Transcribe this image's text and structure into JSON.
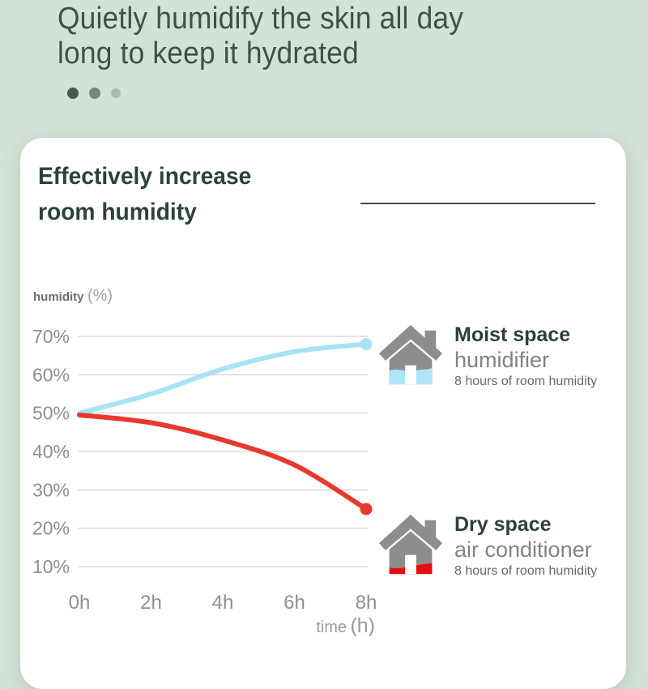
{
  "colors": {
    "page_bg": "#d4e1d6",
    "header_text": "#3d5245",
    "card_bg": "#ffffff",
    "card_title": "#2c4435",
    "rule": "#3e4e44",
    "grid": "#cacaca",
    "tick_text": "#8f8f8f",
    "humid_line": "#a7e3f5",
    "dry_line": "#e9382e",
    "house_gray": "#8d8d8d",
    "house_water_blue": "#aee6f8",
    "house_dry_red": "#e60f0f",
    "legend_title": "#2b4233",
    "legend_subtitle": "#828282",
    "legend_caption": "#686868"
  },
  "header": {
    "title_line1": "Quietly humidify the skin all day",
    "title_line2": "long to keep it hydrated"
  },
  "carousel": {
    "dots": [
      {
        "name": "carousel-dot-1",
        "color": "#45584b",
        "active": true
      },
      {
        "name": "carousel-dot-2",
        "color": "#73877a",
        "active": false
      },
      {
        "name": "carousel-dot-3",
        "color": "#a8bbad",
        "active": false
      }
    ]
  },
  "card": {
    "title_line1": "Effectively increase",
    "title_line2": "room humidity"
  },
  "chart_data": {
    "type": "line",
    "title": "Effectively increase room humidity",
    "xlabel": "time (h)",
    "ylabel": "humidity (%)",
    "xlabel_parts": {
      "word": "time",
      "unit": "(h)"
    },
    "ylabel_parts": {
      "word": "humidity",
      "unit": "(%)"
    },
    "x_ticks": [
      "0h",
      "2h",
      "4h",
      "6h",
      "8h"
    ],
    "x_tick_values": [
      0,
      2,
      4,
      6,
      8
    ],
    "y_ticks": [
      "70%",
      "60%",
      "50%",
      "40%",
      "30%",
      "20%",
      "10%"
    ],
    "y_tick_values": [
      70,
      60,
      50,
      40,
      30,
      20,
      10
    ],
    "xlim": [
      0,
      8
    ],
    "ylim": [
      10,
      70
    ],
    "grid": true,
    "legend_position": "right",
    "series": [
      {
        "name": "humidifier (Moist space)",
        "color": "#a7e3f5",
        "x": [
          0,
          2,
          4,
          6,
          8
        ],
        "values": [
          50,
          55,
          61.5,
          66,
          68
        ],
        "endpoint_dot": true
      },
      {
        "name": "air conditioner (Dry space)",
        "color": "#e9382e",
        "x": [
          0,
          2,
          4,
          6,
          8
        ],
        "values": [
          49.5,
          47.5,
          43,
          36.5,
          25
        ],
        "endpoint_dot": true
      }
    ]
  },
  "legend": [
    {
      "icon": "house-humidifier-icon",
      "title": "Moist space",
      "subtitle": "humidifier",
      "caption": "8 hours of room humidity"
    },
    {
      "icon": "house-air-conditioner-icon",
      "title": "Dry space",
      "subtitle": "air conditioner",
      "caption": "8 hours of room humidity"
    }
  ]
}
